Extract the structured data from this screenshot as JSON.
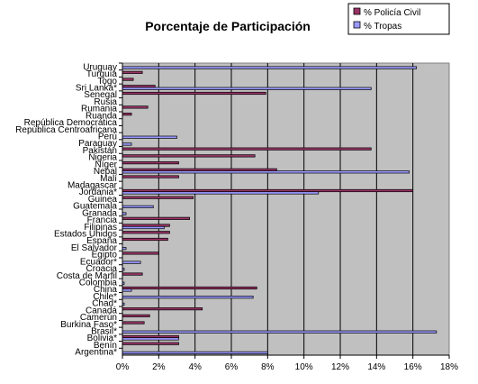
{
  "chart_data": {
    "type": "bar",
    "orientation": "horizontal",
    "title": "Porcentaje de Participación",
    "xlabel": "",
    "ylabel": "",
    "xlim": [
      0,
      18
    ],
    "x_ticks": [
      "0%",
      "2%",
      "4%",
      "6%",
      "8%",
      "10%",
      "12%",
      "14%",
      "16%",
      "18%"
    ],
    "grid": true,
    "legend_position": "top-right",
    "categories": [
      "Uruguay",
      "Turquía",
      "Togo",
      "Sri Lanka*",
      "Senegal",
      "Rusia",
      "Rumania",
      "Ruanda",
      "República Democrática",
      "República Centroafricana",
      "Perú",
      "Paraguay",
      "Pakistán",
      "Nigeria",
      "Níger",
      "Nepal",
      "Malí",
      "Madagascar",
      "Jordania*",
      "Guinea",
      "Guatemala",
      "Granada",
      "Francia",
      "Filipinas",
      "Estados Unidos",
      "España",
      "El Salvador",
      "Egipto",
      "Ecuador*",
      "Croacia",
      "Costa de Marfil",
      "Colombia",
      "China",
      "Chile*",
      "Chad*",
      "Canadá",
      "Camerún",
      "Burkina Faso*",
      "Brasil*",
      "Bolivia*",
      "Benín",
      "Argentina*"
    ],
    "series": [
      {
        "name": "% Policía Civil",
        "color": "#993366",
        "values": [
          0.0,
          1.1,
          0.6,
          1.8,
          7.9,
          0.0,
          1.4,
          0.5,
          0.0,
          0.0,
          0.0,
          0.0,
          13.7,
          7.3,
          3.1,
          8.5,
          3.1,
          0.0,
          16.0,
          3.9,
          0.0,
          0.0,
          3.7,
          2.6,
          2.6,
          2.5,
          0.0,
          2.0,
          0.0,
          0.0,
          1.1,
          0.0,
          7.4,
          0.0,
          0.0,
          4.4,
          1.5,
          1.2,
          0.0,
          3.1,
          3.1,
          0.0
        ]
      },
      {
        "name": "% Tropas",
        "color": "#9999ff",
        "values": [
          16.2,
          0.0,
          0.0,
          13.7,
          0.0,
          0.0,
          0.0,
          0.0,
          0.0,
          0.0,
          3.0,
          0.5,
          0.0,
          0.0,
          0.0,
          15.8,
          0.0,
          0.0,
          10.8,
          0.0,
          1.7,
          0.2,
          0.0,
          2.3,
          0.0,
          0.0,
          0.2,
          0.0,
          1.0,
          0.1,
          0.0,
          0.1,
          0.5,
          7.2,
          0.1,
          0.0,
          0.0,
          0.0,
          17.3,
          3.1,
          0.0,
          8.0
        ]
      }
    ]
  }
}
